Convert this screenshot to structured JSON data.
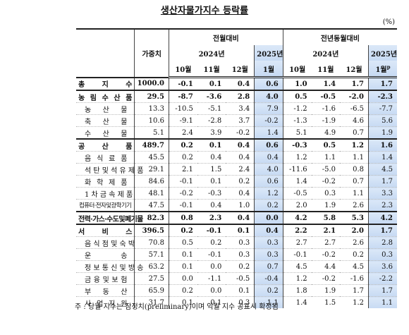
{
  "title": "생산자물가지수 등락률",
  "unit": "(%)",
  "header": {
    "weight": "가중치",
    "group1": "전월대비",
    "group2": "전년동월대비",
    "year2024": "2024년",
    "year2025": "2025년",
    "months1": [
      "10월",
      "11월",
      "12월",
      "1월"
    ],
    "months2": [
      "10월",
      "11월",
      "12월",
      "1월"
    ],
    "prelim": "p"
  },
  "table": {
    "rows": [
      {
        "label": "총 지 수",
        "weight": "1000.0",
        "mom": [
          "-0.1",
          "0.1",
          "0.4",
          "0.6"
        ],
        "yoy": [
          "1.0",
          "1.4",
          "1.7",
          "1.7"
        ]
      },
      {
        "label": "농 림 수 산 품",
        "weight": "29.5",
        "mom": [
          "-8.7",
          "-3.6",
          "2.8",
          "4.0"
        ],
        "yoy": [
          "0.5",
          "-0.5",
          "-2.0",
          "-2.3"
        ]
      },
      {
        "label": "농 산 물",
        "weight": "13.3",
        "mom": [
          "-10.5",
          "-5.1",
          "3.4",
          "7.9"
        ],
        "yoy": [
          "-1.2",
          "-1.6",
          "-6.5",
          "-7.7"
        ]
      },
      {
        "label": "축 산 물",
        "weight": "10.6",
        "mom": [
          "-9.1",
          "-2.8",
          "3.7",
          "-0.2"
        ],
        "yoy": [
          "-1.3",
          "-1.9",
          "4.6",
          "5.6"
        ]
      },
      {
        "label": "수 산 물",
        "weight": "5.1",
        "mom": [
          "2.4",
          "3.9",
          "-0.2",
          "1.4"
        ],
        "yoy": [
          "5.1",
          "4.9",
          "0.7",
          "1.9"
        ]
      },
      {
        "label": "공 산 품",
        "weight": "489.7",
        "mom": [
          "0.2",
          "0.1",
          "0.4",
          "0.6"
        ],
        "yoy": [
          "-0.3",
          "0.5",
          "1.2",
          "1.6"
        ]
      },
      {
        "label": "음 식 료 품",
        "weight": "45.5",
        "mom": [
          "0.2",
          "0.4",
          "0.4",
          "0.4"
        ],
        "yoy": [
          "1.2",
          "1.1",
          "1.1",
          "1.4"
        ]
      },
      {
        "label": "석 탄 및 석 유 제 품",
        "weight": "29.1",
        "mom": [
          "2.1",
          "1.5",
          "2.4",
          "4.0"
        ],
        "yoy": [
          "-11.6",
          "-5.0",
          "0.8",
          "4.5"
        ]
      },
      {
        "label": "화 학 제 품",
        "weight": "84.6",
        "mom": [
          "-0.1",
          "0.1",
          "0.2",
          "0.6"
        ],
        "yoy": [
          "1.4",
          "-0.2",
          "0.7",
          "1.7"
        ]
      },
      {
        "label": "1 차 금 속 제 품",
        "weight": "48.1",
        "mom": [
          "-0.2",
          "-0.3",
          "0.4",
          "1.2"
        ],
        "yoy": [
          "-0.5",
          "0.3",
          "1.1",
          "3.3"
        ]
      },
      {
        "label": "컴퓨터·전자및광학기기",
        "weight": "47.5",
        "mom": [
          "-0.1",
          "0.4",
          "1.0",
          "0.2"
        ],
        "yoy": [
          "2.0",
          "1.9",
          "2.6",
          "2.3"
        ]
      },
      {
        "label": "전력·가스·수도및폐기물",
        "weight": "82.3",
        "mom": [
          "0.8",
          "2.3",
          "0.4",
          "0.0"
        ],
        "yoy": [
          "4.2",
          "5.8",
          "5.3",
          "4.2"
        ]
      },
      {
        "label": "서 비 스",
        "weight": "396.5",
        "mom": [
          "0.2",
          "-0.1",
          "0.1",
          "0.4"
        ],
        "yoy": [
          "2.2",
          "2.1",
          "2.0",
          "1.7"
        ]
      },
      {
        "label": "음 식 점 및 숙 박",
        "weight": "70.8",
        "mom": [
          "0.5",
          "0.2",
          "0.3",
          "0.3"
        ],
        "yoy": [
          "2.7",
          "2.7",
          "2.6",
          "2.8"
        ]
      },
      {
        "label": "운 송",
        "weight": "57.1",
        "mom": [
          "0.1",
          "-0.1",
          "0.3",
          "0.3"
        ],
        "yoy": [
          "-0.1",
          "-0.2",
          "0.2",
          "0.3"
        ]
      },
      {
        "label": "정 보 통 신 및 방 송",
        "weight": "63.2",
        "mom": [
          "0.1",
          "0.0",
          "0.2",
          "0.7"
        ],
        "yoy": [
          "4.5",
          "4.4",
          "4.5",
          "3.6"
        ]
      },
      {
        "label": "금 융 및 보 험",
        "weight": "27.5",
        "mom": [
          "0.0",
          "-1.1",
          "-0.5",
          "-0.4"
        ],
        "yoy": [
          "1.2",
          "-0.2",
          "-1.6",
          "-2.2"
        ]
      },
      {
        "label": "부 동 산",
        "weight": "65.9",
        "mom": [
          "0.2",
          "0.0",
          "0.1",
          "0.2"
        ],
        "yoy": [
          "1.8",
          "1.9",
          "1.7",
          "1.7"
        ]
      },
      {
        "label": "사 업 지 원",
        "weight": "31.7",
        "mom": [
          "0.1",
          "0.1",
          "0.3",
          "1.1"
        ],
        "yoy": [
          "1.4",
          "1.5",
          "1.2",
          "1.1"
        ]
      }
    ]
  },
  "footnote": "주 : 당월 지수는 잠정치(preliminary)이며 익월 지수 공표시 확정됨"
}
